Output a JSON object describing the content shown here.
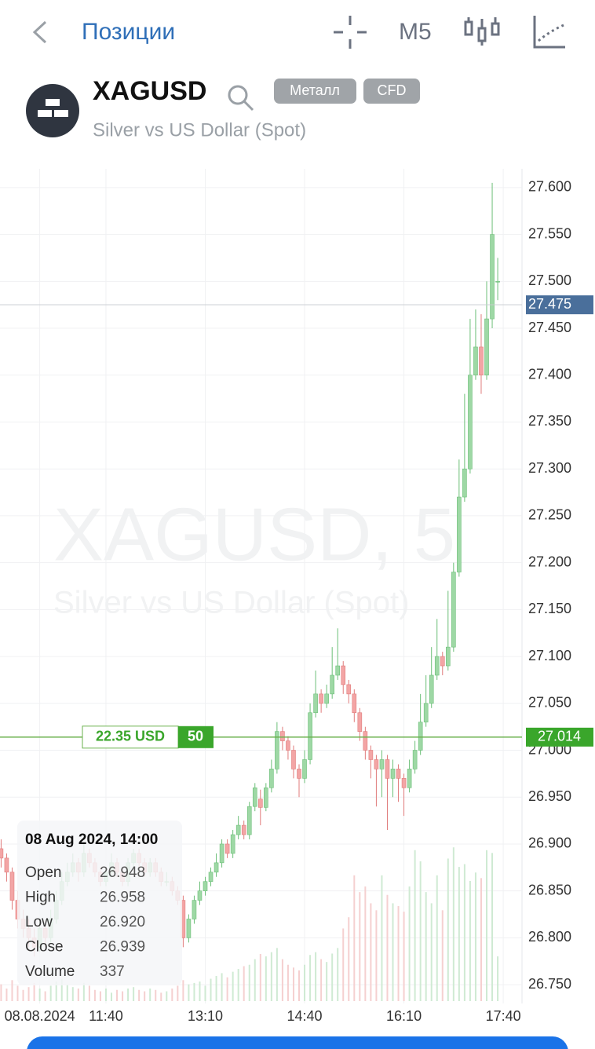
{
  "header": {
    "back_label": "Позиции",
    "timeframe": "M5"
  },
  "symbol": {
    "name": "XAGUSD",
    "description": "Silver vs US Dollar (Spot)",
    "tags": [
      "Металл",
      "CFD"
    ]
  },
  "chart_data": {
    "type": "candlestick",
    "watermark": "XAGUSD, 5",
    "watermark_subtitle": "Silver vs US Dollar (Spot)",
    "up_color": "#9ed8a5",
    "down_color": "#f3a5a5",
    "candles": [
      [
        26.895,
        26.905,
        26.875,
        26.885
      ],
      [
        26.885,
        26.89,
        26.86,
        26.87
      ],
      [
        26.87,
        26.875,
        26.83,
        26.84
      ],
      [
        26.84,
        26.85,
        26.81,
        26.82
      ],
      [
        26.82,
        26.83,
        26.8,
        26.81
      ],
      [
        26.81,
        26.82,
        26.79,
        26.8
      ],
      [
        26.8,
        26.81,
        26.78,
        26.79
      ],
      [
        26.79,
        26.82,
        26.785,
        26.81
      ],
      [
        26.81,
        26.815,
        26.79,
        26.8
      ],
      [
        26.8,
        26.83,
        26.795,
        26.82
      ],
      [
        26.82,
        26.85,
        26.815,
        26.84
      ],
      [
        26.84,
        26.87,
        26.835,
        26.86
      ],
      [
        26.86,
        26.88,
        26.855,
        26.87
      ],
      [
        26.87,
        26.89,
        26.865,
        26.88
      ],
      [
        26.88,
        26.885,
        26.86,
        26.87
      ],
      [
        26.87,
        26.9,
        26.865,
        26.89
      ],
      [
        26.89,
        26.895,
        26.875,
        26.88
      ],
      [
        26.88,
        26.885,
        26.865,
        26.87
      ],
      [
        26.87,
        26.875,
        26.855,
        26.86
      ],
      [
        26.86,
        26.875,
        26.855,
        26.87
      ],
      [
        26.87,
        26.89,
        26.865,
        26.88
      ],
      [
        26.88,
        26.885,
        26.865,
        26.87
      ],
      [
        26.87,
        26.875,
        26.855,
        26.86
      ],
      [
        26.86,
        26.885,
        26.855,
        26.88
      ],
      [
        26.88,
        26.895,
        26.875,
        26.89
      ],
      [
        26.89,
        26.895,
        26.875,
        26.88
      ],
      [
        26.88,
        26.885,
        26.865,
        26.87
      ],
      [
        26.87,
        26.885,
        26.865,
        26.88
      ],
      [
        26.88,
        26.885,
        26.865,
        26.87
      ],
      [
        26.87,
        26.875,
        26.855,
        26.86
      ],
      [
        26.86,
        26.87,
        26.855,
        26.86
      ],
      [
        26.86,
        26.865,
        26.845,
        26.85
      ],
      [
        26.85,
        26.855,
        26.835,
        26.84
      ],
      [
        26.84,
        26.845,
        26.79,
        26.8
      ],
      [
        26.8,
        26.825,
        26.795,
        26.82
      ],
      [
        26.82,
        26.845,
        26.815,
        26.84
      ],
      [
        26.84,
        26.86,
        26.835,
        26.85
      ],
      [
        26.85,
        26.865,
        26.845,
        26.86
      ],
      [
        26.86,
        26.875,
        26.855,
        26.87
      ],
      [
        26.87,
        26.89,
        26.865,
        26.88
      ],
      [
        26.88,
        26.905,
        26.875,
        26.9
      ],
      [
        26.9,
        26.905,
        26.885,
        26.89
      ],
      [
        26.89,
        26.915,
        26.885,
        26.91
      ],
      [
        26.91,
        26.93,
        26.905,
        26.92
      ],
      [
        26.92,
        26.925,
        26.905,
        26.91
      ],
      [
        26.91,
        26.945,
        26.905,
        26.94
      ],
      [
        26.94,
        26.965,
        26.935,
        26.96
      ],
      [
        26.948,
        26.958,
        26.92,
        26.939
      ],
      [
        26.939,
        26.965,
        26.935,
        26.96
      ],
      [
        26.96,
        26.99,
        26.955,
        26.98
      ],
      [
        26.98,
        27.03,
        26.975,
        27.02
      ],
      [
        27.02,
        27.025,
        27.0,
        27.01
      ],
      [
        27.01,
        27.015,
        26.99,
        27.0
      ],
      [
        27.0,
        27.005,
        26.97,
        26.98
      ],
      [
        26.98,
        26.985,
        26.95,
        26.97
      ],
      [
        26.97,
        27.0,
        26.965,
        26.99
      ],
      [
        26.99,
        27.05,
        26.985,
        27.04
      ],
      [
        27.04,
        27.085,
        27.035,
        27.06
      ],
      [
        27.06,
        27.065,
        27.04,
        27.05
      ],
      [
        27.05,
        27.07,
        27.045,
        27.06
      ],
      [
        27.06,
        27.11,
        27.055,
        27.08
      ],
      [
        27.08,
        27.13,
        27.075,
        27.09
      ],
      [
        27.09,
        27.095,
        27.06,
        27.07
      ],
      [
        27.07,
        27.075,
        27.05,
        27.06
      ],
      [
        27.06,
        27.065,
        27.03,
        27.04
      ],
      [
        27.04,
        27.045,
        27.01,
        27.02
      ],
      [
        27.02,
        27.025,
        26.99,
        27.0
      ],
      [
        27.0,
        27.005,
        26.97,
        26.99
      ],
      [
        26.99,
        26.995,
        26.94,
        26.98
      ],
      [
        26.98,
        27.0,
        26.95,
        26.99
      ],
      [
        26.99,
        26.995,
        26.915,
        26.97
      ],
      [
        26.97,
        26.99,
        26.95,
        26.98
      ],
      [
        26.98,
        26.985,
        26.945,
        26.97
      ],
      [
        26.97,
        26.975,
        26.93,
        26.96
      ],
      [
        26.96,
        26.99,
        26.955,
        26.98
      ],
      [
        26.98,
        27.01,
        26.975,
        27.0
      ],
      [
        27.0,
        27.06,
        26.995,
        27.03
      ],
      [
        27.03,
        27.08,
        27.025,
        27.05
      ],
      [
        27.05,
        27.11,
        27.045,
        27.08
      ],
      [
        27.08,
        27.14,
        27.075,
        27.1
      ],
      [
        27.1,
        27.105,
        27.08,
        27.09
      ],
      [
        27.09,
        27.17,
        27.085,
        27.11
      ],
      [
        27.11,
        27.2,
        27.105,
        27.19
      ],
      [
        27.19,
        27.31,
        27.185,
        27.27
      ],
      [
        27.27,
        27.38,
        27.265,
        27.3
      ],
      [
        27.3,
        27.46,
        27.295,
        27.4
      ],
      [
        27.4,
        27.47,
        27.395,
        27.43
      ],
      [
        27.43,
        27.465,
        27.38,
        27.4
      ],
      [
        27.4,
        27.5,
        27.395,
        27.46
      ],
      [
        27.46,
        27.605,
        27.45,
        27.55
      ],
      [
        27.5,
        27.525,
        27.48,
        27.5
      ]
    ],
    "volumes": [
      120,
      90,
      150,
      110,
      80,
      100,
      130,
      90,
      70,
      110,
      140,
      160,
      120,
      100,
      90,
      130,
      110,
      80,
      70,
      90,
      60,
      80,
      70,
      90,
      100,
      80,
      70,
      90,
      80,
      60,
      70,
      90,
      110,
      150,
      120,
      130,
      140,
      110,
      160,
      180,
      200,
      170,
      210,
      230,
      250,
      260,
      300,
      337,
      320,
      350,
      380,
      300,
      260,
      240,
      220,
      260,
      330,
      350,
      300,
      280,
      340,
      380,
      520,
      600,
      900,
      780,
      820,
      700,
      650,
      900,
      760,
      700,
      680,
      640,
      820,
      1080,
      1000,
      780,
      700,
      900,
      650,
      1020,
      1100,
      960,
      980,
      860,
      920,
      880,
      1080,
      1060,
      320
    ],
    "xlim": [
      -0.2,
      94.4
    ],
    "ylim": [
      26.73,
      27.62
    ],
    "xticks": [
      {
        "value": 7,
        "label": "08.08.2024"
      },
      {
        "value": 19,
        "label": "11:40"
      },
      {
        "value": 37,
        "label": "13:10"
      },
      {
        "value": 55,
        "label": "14:40"
      },
      {
        "value": 73,
        "label": "16:10"
      },
      {
        "value": 91,
        "label": "17:40"
      }
    ],
    "yticks": [
      {
        "value": 27.6,
        "label": "27.600"
      },
      {
        "value": 27.55,
        "label": "27.550"
      },
      {
        "value": 27.5,
        "label": "27.500"
      },
      {
        "value": 27.45,
        "label": "27.450"
      },
      {
        "value": 27.4,
        "label": "27.400"
      },
      {
        "value": 27.35,
        "label": "27.350"
      },
      {
        "value": 27.3,
        "label": "27.300"
      },
      {
        "value": 27.25,
        "label": "27.250"
      },
      {
        "value": 27.2,
        "label": "27.200"
      },
      {
        "value": 27.15,
        "label": "27.150"
      },
      {
        "value": 27.1,
        "label": "27.100"
      },
      {
        "value": 27.05,
        "label": "27.050"
      },
      {
        "value": 27.0,
        "label": "27.000"
      },
      {
        "value": 26.95,
        "label": "26.950"
      },
      {
        "value": 26.9,
        "label": "26.900"
      },
      {
        "value": 26.85,
        "label": "26.850"
      },
      {
        "value": 26.8,
        "label": "26.800"
      },
      {
        "value": 26.75,
        "label": "26.750"
      }
    ],
    "current_price": 27.475,
    "order_line": {
      "price": 27.014,
      "profit": "22.35 USD",
      "volume": 50
    },
    "tooltip": {
      "date": "08 Aug 2024, 14:00",
      "fields": [
        {
          "label": "Open",
          "value": 26.948
        },
        {
          "label": "High",
          "value": 26.958
        },
        {
          "label": "Low",
          "value": 26.92,
          "value_label": "26.920"
        },
        {
          "label": "Close",
          "value": 26.939
        },
        {
          "label": "Volume",
          "value": 337
        }
      ]
    }
  }
}
